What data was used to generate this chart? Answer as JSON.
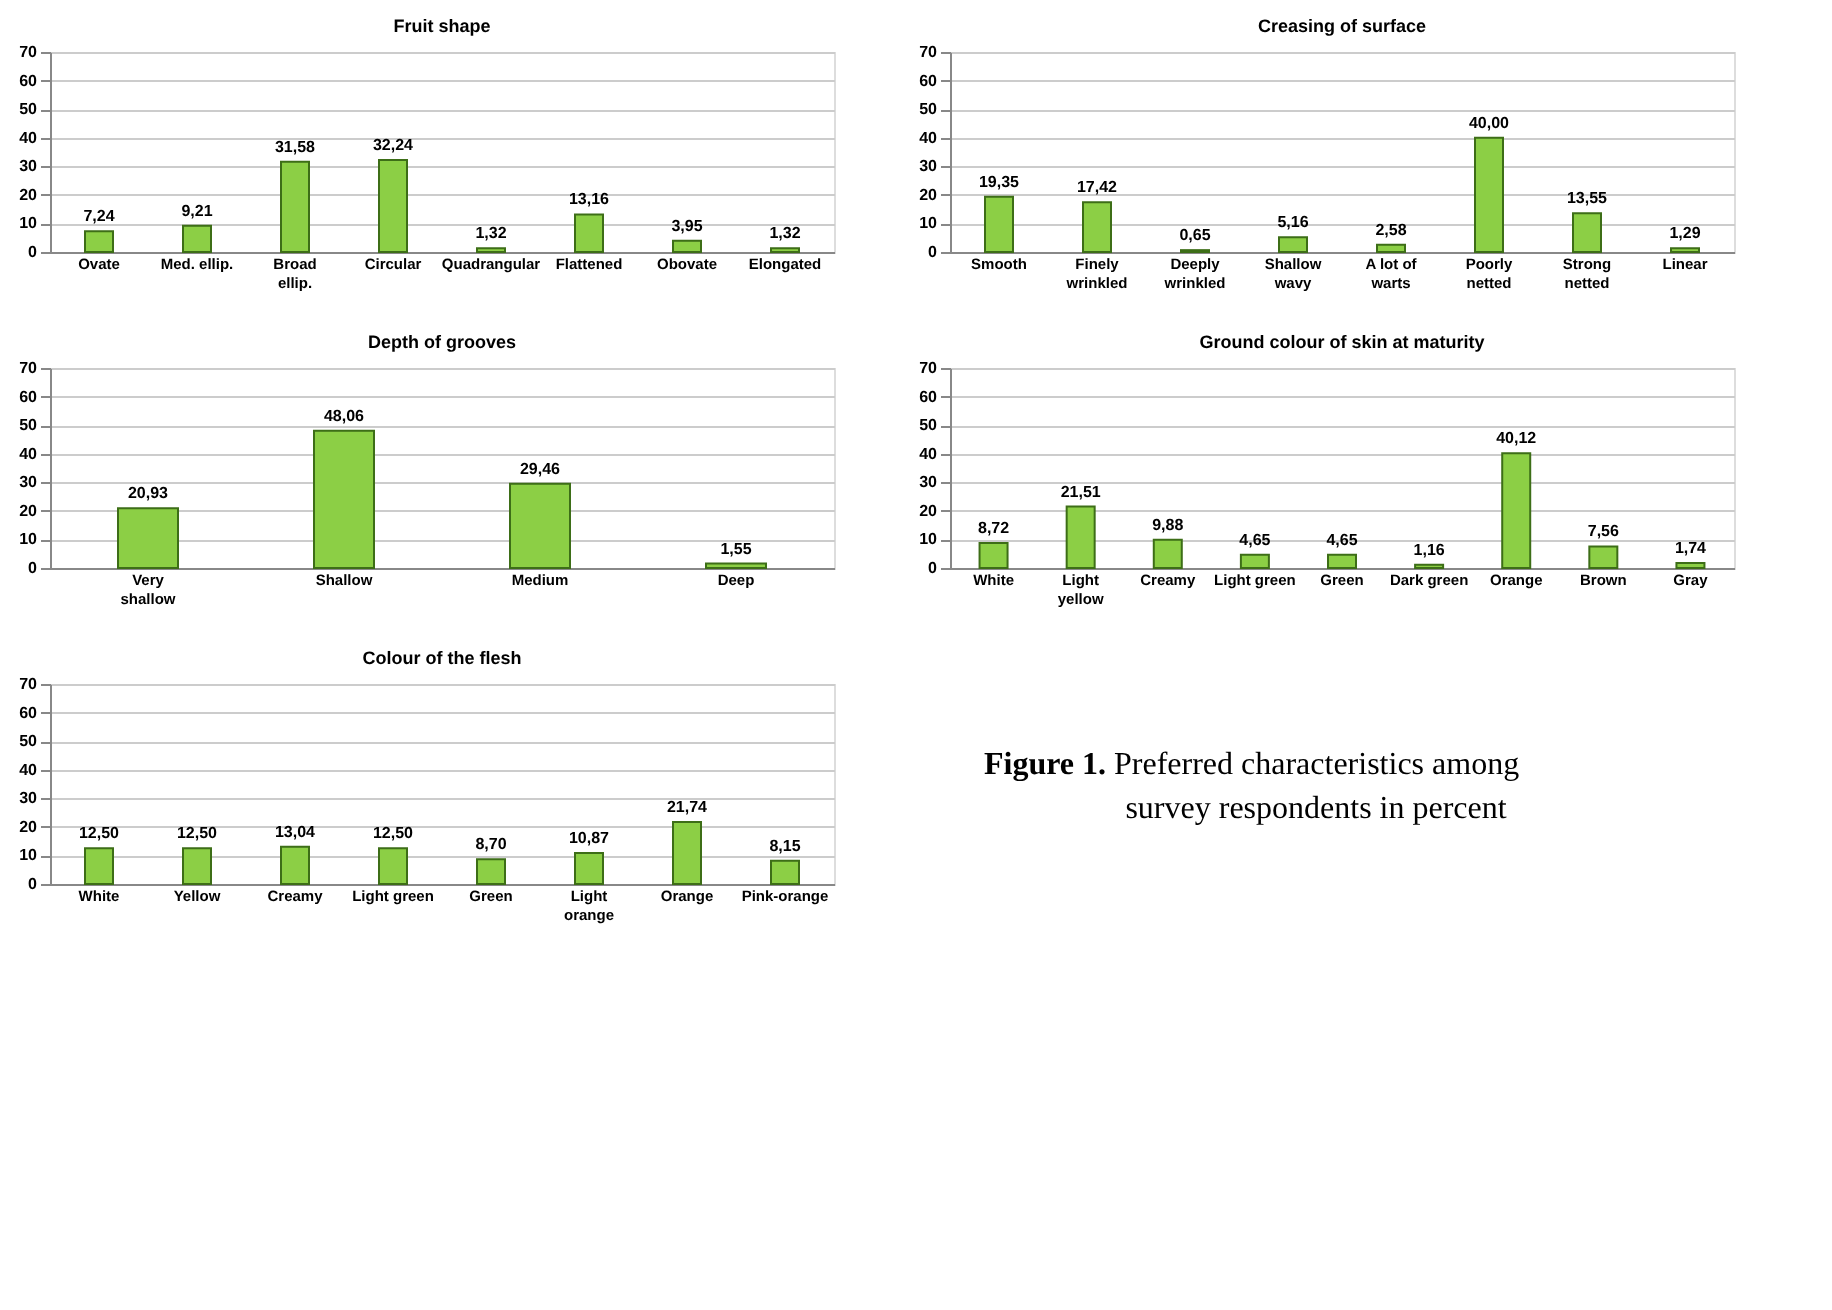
{
  "chart_data": [
    {
      "type": "bar",
      "title": "Fruit shape",
      "categories": [
        "Ovate",
        "Med. ellip.",
        "Broad ellip.",
        "Circular",
        "Quadrangular",
        "Flattened",
        "Obovate",
        "Elongated"
      ],
      "values": [
        7.24,
        9.21,
        31.58,
        32.24,
        1.32,
        13.16,
        3.95,
        1.32
      ],
      "value_labels": [
        "7,24",
        "9,21",
        "31,58",
        "32,24",
        "1,32",
        "13,16",
        "3,95",
        "1,32"
      ],
      "color": "#8ccf45",
      "ylim": [
        0,
        70
      ],
      "yticks": [
        0,
        10,
        20,
        30,
        40,
        50,
        60,
        70
      ],
      "grid": "y"
    },
    {
      "type": "bar",
      "title": "Creasing of surface",
      "categories": [
        "Smooth",
        "Finely wrinkled",
        "Deeply wrinkled",
        "Shallow wavy",
        "A lot of warts",
        "Poorly netted",
        "Strong netted",
        "Linear"
      ],
      "values": [
        19.35,
        17.42,
        0.65,
        5.16,
        2.58,
        40.0,
        13.55,
        1.29
      ],
      "value_labels": [
        "19,35",
        "17,42",
        "0,65",
        "5,16",
        "2,58",
        "40,00",
        "13,55",
        "1,29"
      ],
      "color": "#8ccf45",
      "ylim": [
        0,
        70
      ],
      "yticks": [
        0,
        10,
        20,
        30,
        40,
        50,
        60,
        70
      ],
      "grid": "y"
    },
    {
      "type": "bar",
      "title": "Depth of grooves",
      "categories": [
        "Very shallow",
        "Shallow",
        "Medium",
        "Deep"
      ],
      "values": [
        20.93,
        48.06,
        29.46,
        1.55
      ],
      "value_labels": [
        "20,93",
        "48,06",
        "29,46",
        "1,55"
      ],
      "color": "#8ccf45",
      "ylim": [
        0,
        70
      ],
      "yticks": [
        0,
        10,
        20,
        30,
        40,
        50,
        60,
        70
      ],
      "grid": "y"
    },
    {
      "type": "bar",
      "title": "Ground colour of skin at maturity",
      "categories": [
        "White",
        "Light yellow",
        "Creamy",
        "Light green",
        "Green",
        "Dark green",
        "Orange",
        "Brown",
        "Gray"
      ],
      "values": [
        8.72,
        21.51,
        9.88,
        4.65,
        4.65,
        1.16,
        40.12,
        7.56,
        1.74
      ],
      "value_labels": [
        "8,72",
        "21,51",
        "9,88",
        "4,65",
        "4,65",
        "1,16",
        "40,12",
        "7,56",
        "1,74"
      ],
      "color": "#8ccf45",
      "ylim": [
        0,
        70
      ],
      "yticks": [
        0,
        10,
        20,
        30,
        40,
        50,
        60,
        70
      ],
      "grid": "y"
    },
    {
      "type": "bar",
      "title": "Colour of the flesh",
      "categories": [
        "White",
        "Yellow",
        "Creamy",
        "Light green",
        "Green",
        "Light orange",
        "Orange",
        "Pink-orange"
      ],
      "values": [
        12.5,
        12.5,
        13.04,
        12.5,
        8.7,
        10.87,
        21.74,
        8.15
      ],
      "value_labels": [
        "12,50",
        "12,50",
        "13,04",
        "12,50",
        "8,70",
        "10,87",
        "21,74",
        "8,15"
      ],
      "color": "#8ccf45",
      "ylim": [
        0,
        70
      ],
      "yticks": [
        0,
        10,
        20,
        30,
        40,
        50,
        60,
        70
      ],
      "grid": "y"
    },
    {
      "type": "other",
      "title": "Figure 1.",
      "annotations": [
        "Preferred characteristics among survey respondents in percent"
      ]
    }
  ]
}
